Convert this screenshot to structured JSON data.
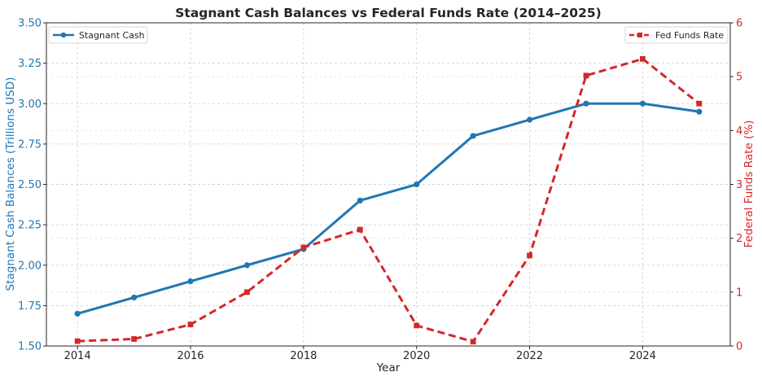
{
  "colors": {
    "cash": "#1f77b4",
    "fed": "#d62728",
    "text": "#262626",
    "grid": "#cccccc",
    "axis": "#262626"
  },
  "chart_data": {
    "type": "line",
    "title": "Stagnant Cash Balances vs Federal Funds Rate (2014–2025)",
    "xlabel": "Year",
    "ylabel_left": "Stagnant Cash Balances (Trillions USD)",
    "ylabel_right": "Federal Funds Rate (%)",
    "x": [
      2014,
      2015,
      2016,
      2017,
      2018,
      2019,
      2020,
      2021,
      2022,
      2023,
      2024,
      2025
    ],
    "x_ticks": [
      "2014",
      "2016",
      "2018",
      "2020",
      "2022",
      "2024"
    ],
    "y_left_ticks": [
      "1.50",
      "1.75",
      "2.00",
      "2.25",
      "2.50",
      "2.75",
      "3.00",
      "3.25",
      "3.50"
    ],
    "y_right_ticks": [
      "0",
      "1",
      "2",
      "3",
      "4",
      "5",
      "6"
    ],
    "xlim": [
      2013.45,
      2025.55
    ],
    "ylim_left": [
      1.5,
      3.5
    ],
    "ylim_right": [
      0,
      6
    ],
    "grid": true,
    "series": [
      {
        "name": "Stagnant Cash",
        "axis": "left",
        "style": "solid",
        "marker": "circle",
        "values": [
          1.7,
          1.8,
          1.9,
          2.0,
          2.1,
          2.4,
          2.5,
          2.8,
          2.9,
          3.0,
          3.0,
          2.95
        ]
      },
      {
        "name": "Fed Funds Rate",
        "axis": "right",
        "style": "dashed",
        "marker": "square",
        "values": [
          0.09,
          0.13,
          0.4,
          1.0,
          1.83,
          2.16,
          0.38,
          0.08,
          1.68,
          5.02,
          5.33,
          4.5
        ]
      }
    ],
    "legend_left_placement": "upper-left",
    "legend_right_placement": "upper-right"
  }
}
